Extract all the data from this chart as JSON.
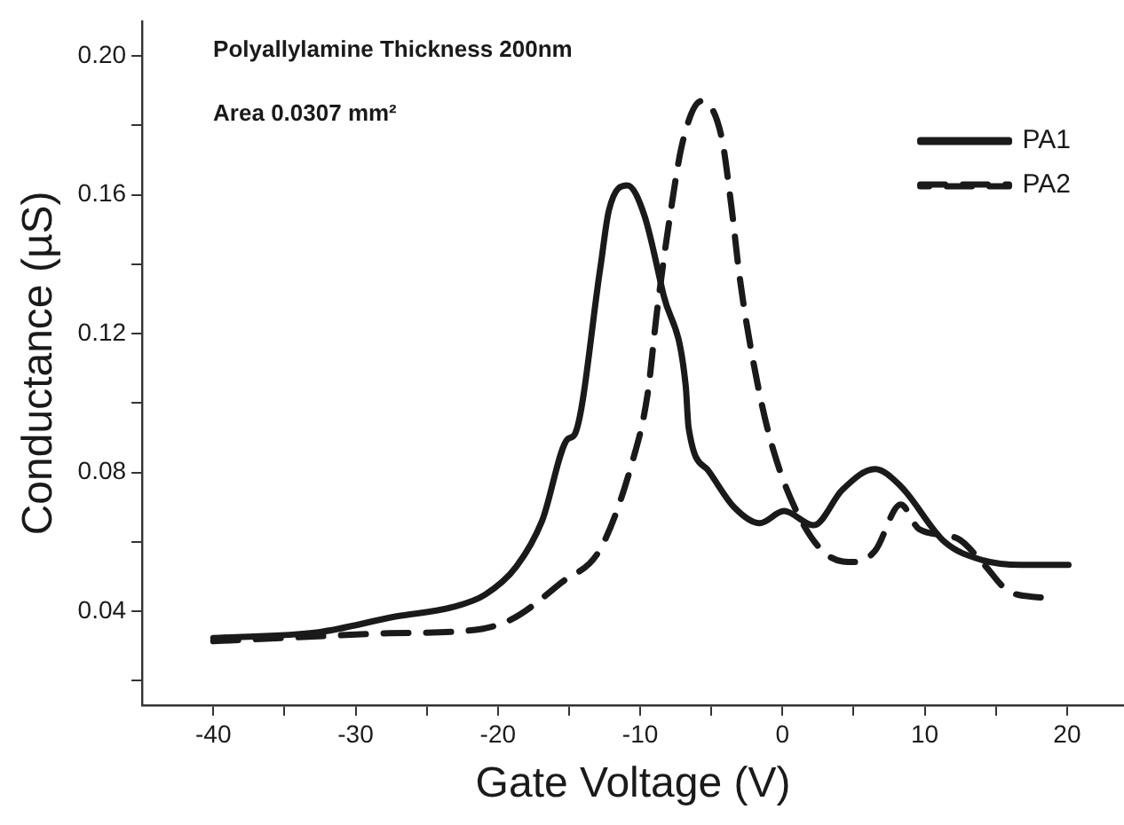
{
  "chart_data": {
    "type": "line",
    "xlabel": "Gate Voltage (V)",
    "ylabel": "Conductance (µS)",
    "annotations": [
      "Polyallylamine Thickness 200nm",
      "Area 0.0307 mm²"
    ],
    "xlim": [
      -45,
      24
    ],
    "xticks": [
      -40,
      {
        "value": -35,
        "label": null
      },
      -30,
      {
        "value": -25,
        "label": null
      },
      -20,
      {
        "value": -15,
        "label": null
      },
      -10,
      {
        "value": -5,
        "label": null
      },
      0,
      {
        "value": 5,
        "label": null
      },
      10,
      {
        "value": 15,
        "label": null
      },
      20
    ],
    "ylim": [
      0.013,
      0.21
    ],
    "yticks": [
      {
        "value": 0.02,
        "label": null
      },
      {
        "value": 0.04,
        "label": "0.04"
      },
      {
        "value": 0.06,
        "label": null
      },
      {
        "value": 0.08,
        "label": "0.08"
      },
      {
        "value": 0.1,
        "label": null
      },
      {
        "value": 0.12,
        "label": "0.12"
      },
      {
        "value": 0.14,
        "label": null
      },
      {
        "value": 0.16,
        "label": "0.16"
      },
      {
        "value": 0.18,
        "label": null
      },
      {
        "value": 0.2,
        "label": "0.20"
      }
    ],
    "grid": false,
    "legend": "top right",
    "series": [
      {
        "name": "PA1",
        "color": "#1a1a1a",
        "line_style": "solid",
        "x": [
          -40,
          -32.6,
          -27.2,
          -23.2,
          -20.9,
          -18.7,
          -16.9,
          -15.1,
          -14.6,
          -12.8,
          -12.2,
          -10.9,
          -9.7,
          -8.35,
          -6.8,
          -6.6,
          -5.2,
          -3.4,
          -1.6,
          0.1,
          2.2,
          4.2,
          6.5,
          8.3,
          11.4,
          14.1,
          16.8,
          20.1
        ],
        "values": [
          0.0323,
          0.034,
          0.0385,
          0.0412,
          0.0448,
          0.0529,
          0.066,
          0.0896,
          0.091,
          0.139,
          0.1555,
          0.1627,
          0.154,
          0.131,
          0.105,
          0.093,
          0.0805,
          0.07,
          0.0654,
          0.0689,
          0.0648,
          0.075,
          0.081,
          0.0761,
          0.06,
          0.0547,
          0.0534,
          0.0534
        ]
      },
      {
        "name": "PA2",
        "color": "#1a1a1a",
        "line_style": "dashed",
        "x": [
          -40,
          -32.6,
          -27.6,
          -22.2,
          -19.1,
          -15.5,
          -12.8,
          -10.6,
          -9.5,
          -8.8,
          -7.9,
          -7.0,
          -5.7,
          -4.3,
          -3.6,
          -3.0,
          -2.1,
          -0.95,
          0.85,
          3.3,
          5.1,
          6.5,
          8.3,
          9.6,
          12.3,
          14.1,
          15.9,
          18.3
        ],
        "values": [
          0.0314,
          0.0328,
          0.0337,
          0.0344,
          0.0376,
          0.0484,
          0.058,
          0.0824,
          0.102,
          0.127,
          0.154,
          0.1755,
          0.187,
          0.177,
          0.157,
          0.136,
          0.113,
          0.091,
          0.07,
          0.0558,
          0.0542,
          0.0574,
          0.0708,
          0.0637,
          0.061,
          0.0538,
          0.0458,
          0.0439
        ]
      }
    ]
  }
}
